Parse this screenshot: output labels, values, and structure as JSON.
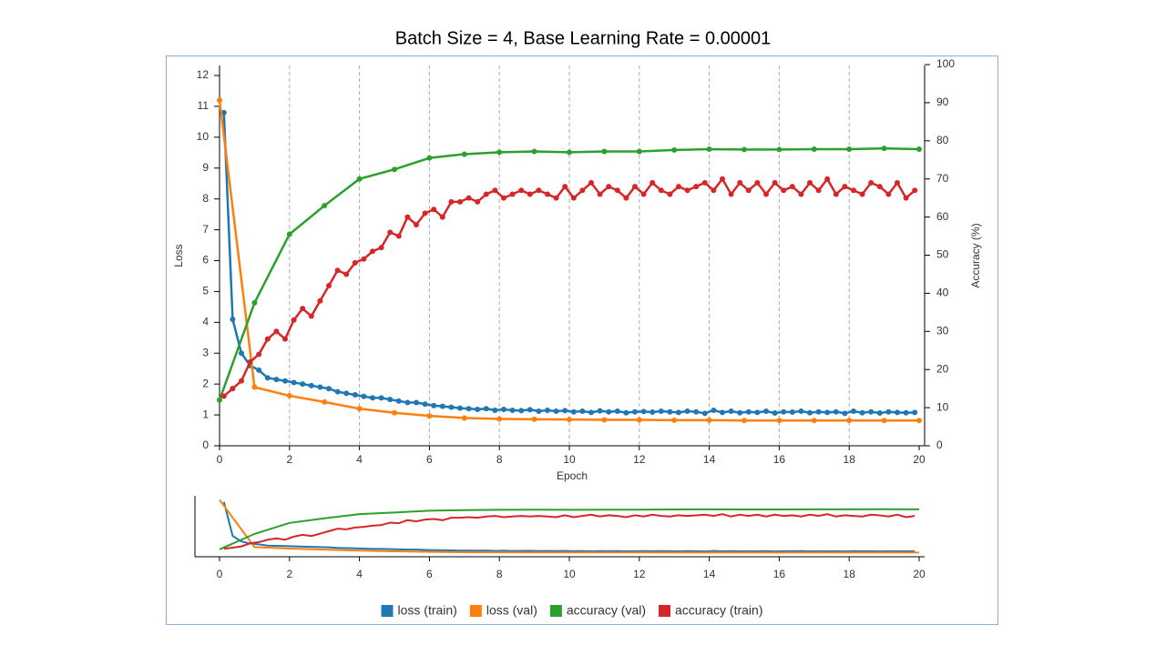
{
  "chart_data": {
    "type": "line",
    "title": "Batch Size = 4, Base Learning Rate = 0.00001",
    "x_label": "Epoch",
    "y_label": "Loss",
    "y2_label": "Accuracy (%)",
    "xlim": [
      0,
      20
    ],
    "xticks": [
      0,
      2,
      4,
      6,
      8,
      10,
      12,
      14,
      16,
      18,
      20
    ],
    "ylim": [
      0,
      12
    ],
    "yticks": [
      0,
      1,
      2,
      3,
      4,
      5,
      6,
      7,
      8,
      9,
      10,
      11,
      12
    ],
    "y2lim": [
      0,
      100
    ],
    "y2ticks": [
      0,
      10,
      20,
      30,
      40,
      50,
      60,
      70,
      80,
      90,
      100
    ],
    "grid": true,
    "legend": "bottom",
    "series": [
      {
        "name": "loss (train)",
        "color": "#1f77b4",
        "x": [
          0.125,
          0.375,
          0.625,
          0.875,
          1.125,
          1.375,
          1.625,
          1.875,
          2.125,
          2.375,
          2.625,
          2.875,
          3.125,
          3.375,
          3.625,
          3.875,
          4.125,
          4.375,
          4.625,
          4.875,
          5.125,
          5.375,
          5.625,
          5.875,
          6.125,
          6.375,
          6.625,
          6.875,
          7.125,
          7.375,
          7.625,
          7.875,
          8.125,
          8.375,
          8.625,
          8.875,
          9.125,
          9.375,
          9.625,
          9.875,
          10.125,
          10.375,
          10.625,
          10.875,
          11.125,
          11.375,
          11.625,
          11.875,
          12.125,
          12.375,
          12.625,
          12.875,
          13.125,
          13.375,
          13.625,
          13.875,
          14.125,
          14.375,
          14.625,
          14.875,
          15.125,
          15.375,
          15.625,
          15.875,
          16.125,
          16.375,
          16.625,
          16.875,
          17.125,
          17.375,
          17.625,
          17.875,
          18.125,
          18.375,
          18.625,
          18.875,
          19.125,
          19.375,
          19.625,
          19.875
        ],
        "values": [
          10.8,
          4.1,
          3.0,
          2.6,
          2.45,
          2.2,
          2.15,
          2.1,
          2.05,
          2.0,
          1.95,
          1.9,
          1.85,
          1.75,
          1.7,
          1.65,
          1.6,
          1.55,
          1.55,
          1.5,
          1.45,
          1.4,
          1.4,
          1.35,
          1.3,
          1.28,
          1.25,
          1.22,
          1.2,
          1.18,
          1.2,
          1.15,
          1.18,
          1.15,
          1.14,
          1.17,
          1.12,
          1.15,
          1.12,
          1.14,
          1.1,
          1.12,
          1.08,
          1.13,
          1.1,
          1.12,
          1.07,
          1.1,
          1.11,
          1.09,
          1.12,
          1.1,
          1.08,
          1.12,
          1.1,
          1.05,
          1.15,
          1.08,
          1.12,
          1.07,
          1.1,
          1.08,
          1.12,
          1.06,
          1.1,
          1.09,
          1.12,
          1.07,
          1.1,
          1.08,
          1.1,
          1.05,
          1.12,
          1.07,
          1.1,
          1.06,
          1.1,
          1.08,
          1.07,
          1.08
        ]
      },
      {
        "name": "loss (val)",
        "color": "#ff7f0e",
        "x": [
          0,
          1,
          2,
          3,
          4,
          5,
          6,
          7,
          8,
          9,
          10,
          11,
          12,
          13,
          14,
          15,
          16,
          17,
          18,
          19,
          20
        ],
        "values": [
          11.2,
          1.9,
          1.62,
          1.42,
          1.2,
          1.07,
          0.97,
          0.9,
          0.87,
          0.86,
          0.85,
          0.84,
          0.84,
          0.83,
          0.83,
          0.82,
          0.82,
          0.82,
          0.82,
          0.82,
          0.82
        ]
      },
      {
        "name": "accuracy (val)",
        "color": "#2ca02c",
        "axis": "y2",
        "x": [
          0,
          1,
          2,
          3,
          4,
          5,
          6,
          7,
          8,
          9,
          10,
          11,
          12,
          13,
          14,
          15,
          16,
          17,
          18,
          19,
          20
        ],
        "values": [
          12,
          37.5,
          55.5,
          63,
          70,
          72.5,
          75.5,
          76.5,
          77,
          77.2,
          77,
          77.2,
          77.2,
          77.6,
          77.8,
          77.7,
          77.7,
          77.8,
          77.8,
          78,
          77.8
        ]
      },
      {
        "name": "accuracy (train)",
        "color": "#d62728",
        "axis": "y2",
        "x": [
          0.125,
          0.375,
          0.625,
          0.875,
          1.125,
          1.375,
          1.625,
          1.875,
          2.125,
          2.375,
          2.625,
          2.875,
          3.125,
          3.375,
          3.625,
          3.875,
          4.125,
          4.375,
          4.625,
          4.875,
          5.125,
          5.375,
          5.625,
          5.875,
          6.125,
          6.375,
          6.625,
          6.875,
          7.125,
          7.375,
          7.625,
          7.875,
          8.125,
          8.375,
          8.625,
          8.875,
          9.125,
          9.375,
          9.625,
          9.875,
          10.125,
          10.375,
          10.625,
          10.875,
          11.125,
          11.375,
          11.625,
          11.875,
          12.125,
          12.375,
          12.625,
          12.875,
          13.125,
          13.375,
          13.625,
          13.875,
          14.125,
          14.375,
          14.625,
          14.875,
          15.125,
          15.375,
          15.625,
          15.875,
          16.125,
          16.375,
          16.625,
          16.875,
          17.125,
          17.375,
          17.625,
          17.875,
          18.125,
          18.375,
          18.625,
          18.875,
          19.125,
          19.375,
          19.625,
          19.875
        ],
        "values": [
          13,
          15,
          17,
          22,
          24,
          28,
          30,
          28,
          33,
          36,
          34,
          38,
          42,
          46,
          45,
          48,
          49,
          51,
          52,
          56,
          55,
          60,
          58,
          61,
          62,
          60,
          64,
          64,
          65,
          64,
          66,
          67,
          65,
          66,
          67,
          66,
          67,
          66,
          65,
          68,
          65,
          67,
          69,
          66,
          68,
          67,
          65,
          68,
          66,
          69,
          67,
          66,
          68,
          67,
          68,
          69,
          67,
          70,
          66,
          69,
          67,
          69,
          66,
          69,
          67,
          68,
          66,
          69,
          67,
          70,
          66,
          68,
          67,
          66,
          69,
          68,
          66,
          69,
          65,
          67
        ]
      }
    ]
  }
}
